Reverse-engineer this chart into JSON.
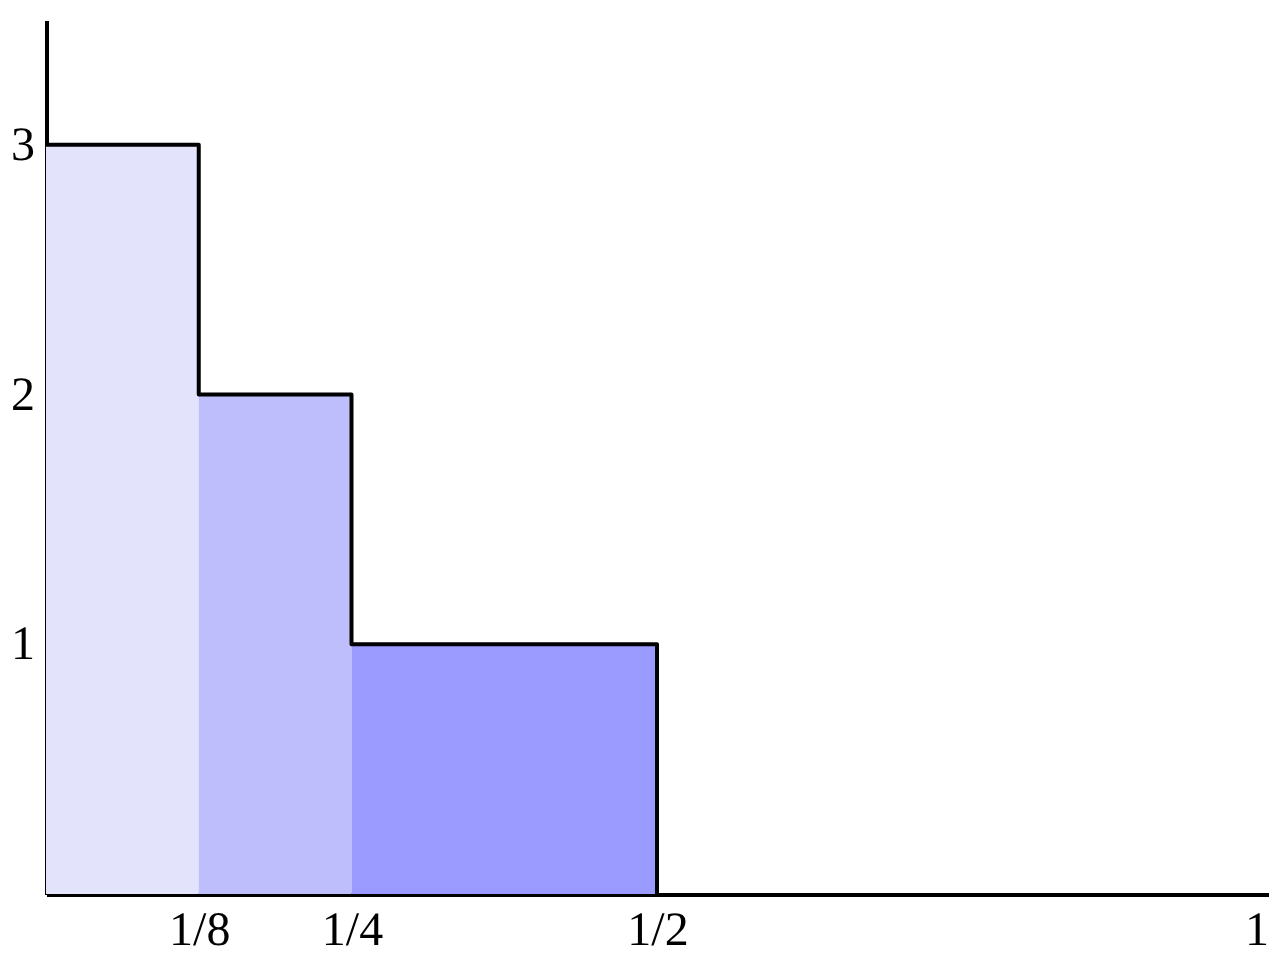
{
  "chart_data": {
    "type": "histogram",
    "bins": [
      0,
      0.125,
      0.25,
      0.5
    ],
    "values": [
      3,
      2,
      1
    ],
    "colors": [
      "#e3e3fb",
      "#bebefd",
      "#9b9bff"
    ],
    "xlim": [
      0,
      1
    ],
    "ylim": [
      0,
      3.5
    ],
    "xticks": [
      {
        "value": 0.125,
        "label": "1/8"
      },
      {
        "value": 0.25,
        "label": "1/4"
      },
      {
        "value": 0.5,
        "label": "1/2"
      },
      1
    ],
    "yticks": [
      1,
      2,
      3
    ],
    "series": [
      {
        "type": "step",
        "color": "#000000",
        "x": [
          0,
          0.125,
          0.25,
          0.5
        ],
        "values": [
          3,
          2,
          1,
          0
        ]
      }
    ],
    "grid": false
  }
}
